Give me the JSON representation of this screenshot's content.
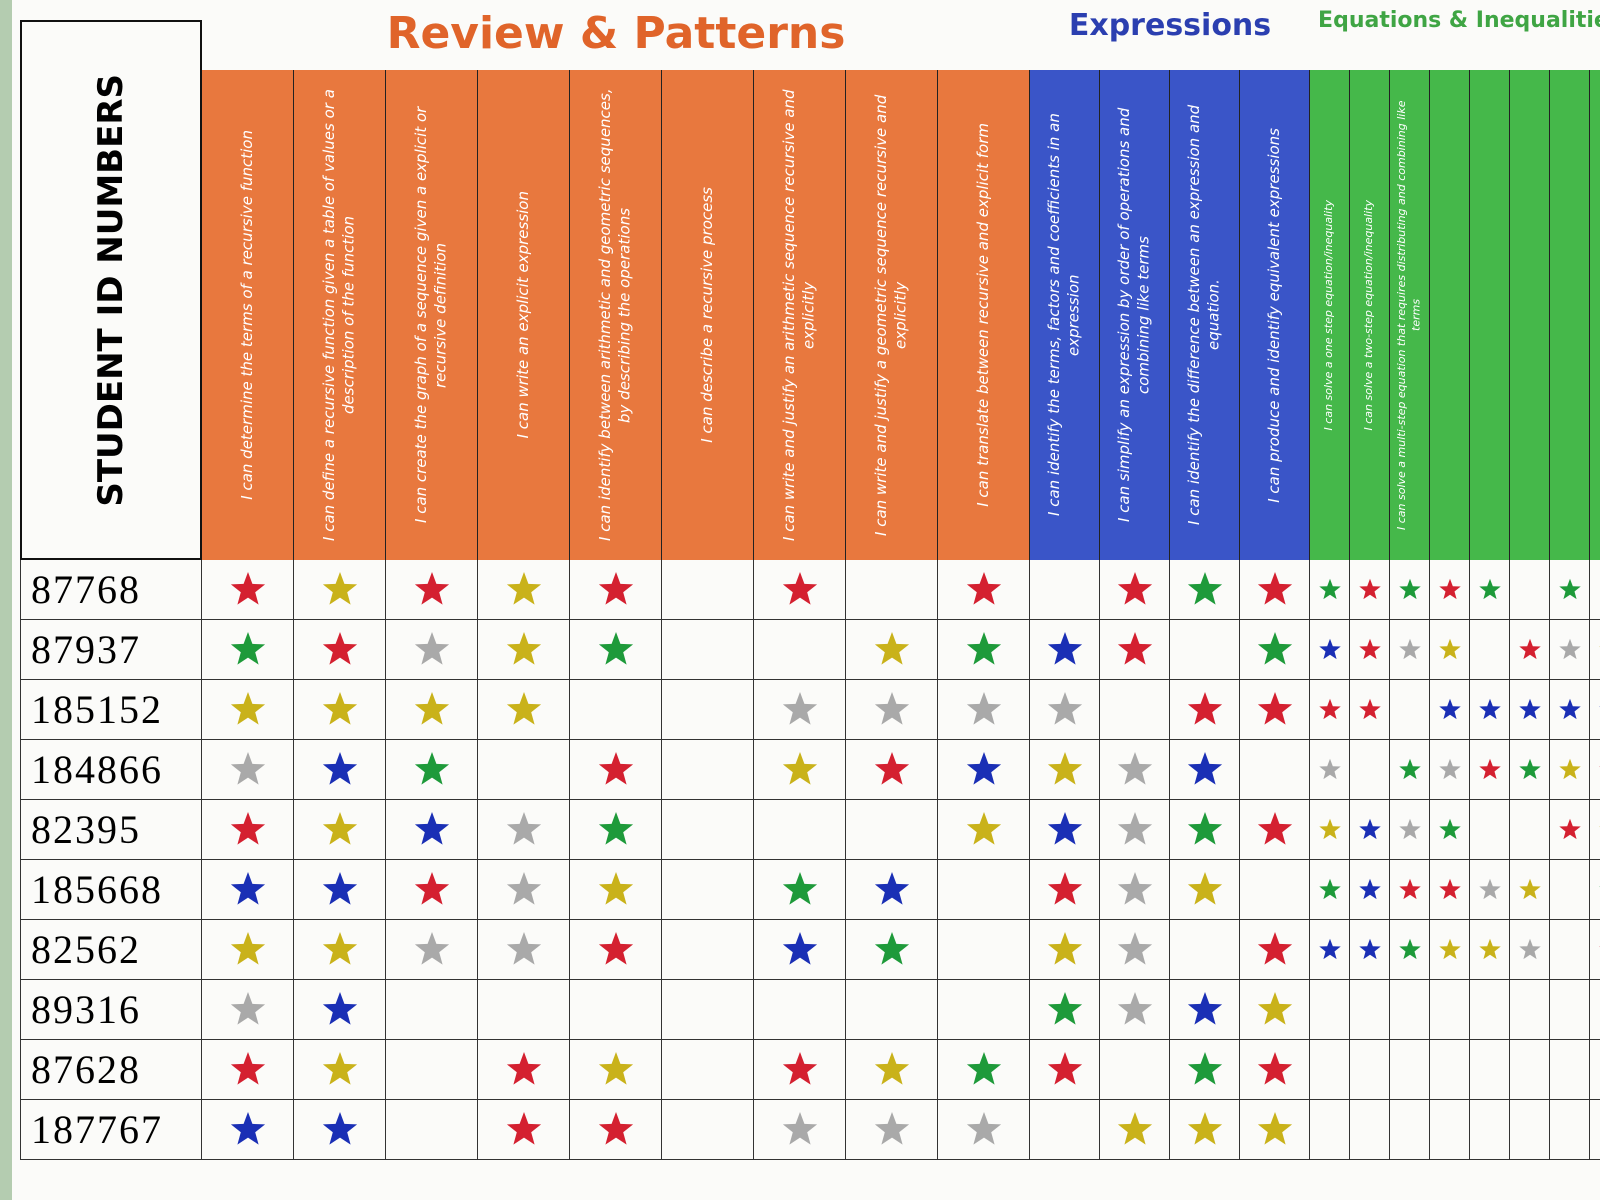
{
  "id_header": "STUDENT ID NUMBERS",
  "student_ids": [
    "87768",
    "87937",
    "185152",
    "184866",
    "82395",
    "185668",
    "82562",
    "89316",
    "87628",
    "187767"
  ],
  "sections": [
    {
      "title": "Review & Patterns",
      "color": "#e8783e",
      "title_color": "#e0642a",
      "skills": [
        "I can determine the terms of a recursive function",
        "I can define a recursive function given a table of values or a description of the function",
        "I can create the graph of a sequence given a explicit or recursive definition",
        "I can write an explicit expression",
        "I can identify between arithmetic and geometric sequences, by describing the operations",
        "I can describe a recursive process",
        "I can write and justify an arithmetic sequence recursive and explicitly",
        "I can write and justify a geometric sequence recursive and explicitly",
        "I can translate between recursive and explicit form"
      ]
    },
    {
      "title": "Expressions",
      "color": "#3a55c8",
      "title_color": "#2b3fb0",
      "skills": [
        "I can identify the terms, factors and coefficients in an expression",
        "I can simplify an expression by order of operations and combining like terms",
        "I can identify the difference between an expression and equation.",
        "I can produce and identify equivalent expressions"
      ]
    },
    {
      "title": "Equations & Inequalities",
      "color": "#45b84a",
      "title_color": "#3fa544",
      "skills": [
        "I can solve a one step equation/inequality",
        "I can solve a two-step equation/inequality",
        "I can solve a multi-step equation that requires distributing and combining like terms"
      ]
    }
  ]
}
